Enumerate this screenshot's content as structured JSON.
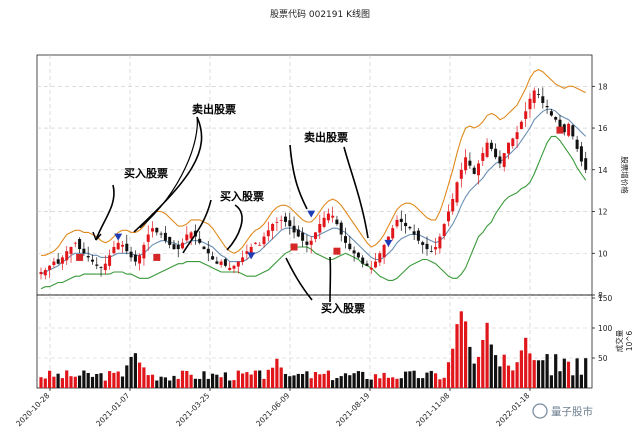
{
  "chart_data": {
    "type": "candlestick",
    "title": "股票代码 002191 K线图",
    "price_axis": {
      "label": "股票增价格",
      "ticks": [
        8,
        10,
        12,
        14,
        16,
        18
      ],
      "ylim": [
        8,
        19.5
      ]
    },
    "volume_axis": {
      "label": "成交量",
      "multiplier": "10^6",
      "ticks": [
        50,
        100,
        150
      ],
      "ylim": [
        0,
        155
      ]
    },
    "x_ticks": [
      "2020-10-28",
      "2021-01-07",
      "2021-03-25",
      "2021-06-09",
      "2021-08-19",
      "2021-11-08",
      "2022-01-18"
    ],
    "grid": true,
    "colors": {
      "up": "#e0161b",
      "down": "#111111",
      "upper_band": "#e08a1e",
      "middle_band": "#6a8fb4",
      "lower_band": "#3a9a3a",
      "buy_marker": "#d62728",
      "sell_marker": "#1f3bb3"
    },
    "close": [
      9.1,
      9.2,
      9.4,
      9.6,
      9.5,
      9.8,
      10.1,
      10.3,
      10.5,
      10.2,
      10.0,
      9.8,
      9.6,
      9.4,
      9.3,
      9.5,
      9.9,
      10.3,
      10.5,
      10.4,
      10.1,
      9.8,
      9.6,
      9.9,
      10.4,
      10.9,
      11.2,
      11.0,
      10.9,
      10.6,
      10.4,
      10.2,
      10.2,
      10.5,
      10.9,
      11.0,
      10.8,
      10.5,
      10.2,
      10.0,
      9.7,
      9.5,
      9.6,
      9.4,
      9.3,
      9.4,
      9.6,
      9.8,
      10.1,
      10.3,
      10.5,
      10.4,
      10.8,
      11.1,
      11.4,
      11.5,
      11.6,
      11.5,
      11.3,
      11.0,
      10.8,
      10.6,
      10.4,
      10.6,
      11.0,
      11.4,
      11.7,
      11.9,
      11.8,
      11.4,
      10.9,
      10.5,
      10.2,
      10.0,
      9.8,
      9.5,
      9.4,
      9.3,
      9.6,
      10.0,
      10.4,
      10.8,
      11.2,
      11.6,
      11.5,
      11.3,
      11.2,
      10.9,
      10.6,
      10.4,
      10.2,
      10.1,
      10.3,
      10.8,
      11.4,
      12.0,
      12.6,
      13.4,
      14.0,
      14.6,
      14.2,
      13.8,
      14.3,
      14.8,
      15.3,
      15.0,
      14.6,
      14.3,
      14.8,
      15.3,
      15.5,
      15.8,
      16.3,
      16.8,
      17.4,
      17.8,
      17.6,
      17.2,
      17.0,
      16.6,
      16.4,
      16.0,
      15.8,
      16.2,
      15.6,
      15.0,
      14.4,
      14.0
    ],
    "upper_band": [
      9.9,
      9.9,
      10.0,
      10.1,
      10.3,
      10.6,
      10.9,
      11.0,
      11.1,
      11.1,
      11.0,
      11.0,
      10.9,
      10.8,
      10.6,
      10.5,
      10.6,
      10.8,
      11.0,
      11.1,
      11.1,
      11.0,
      11.0,
      11.1,
      11.3,
      11.6,
      11.9,
      12.0,
      12.0,
      11.9,
      11.7,
      11.5,
      11.3,
      11.3,
      11.4,
      11.6,
      11.6,
      11.6,
      11.5,
      11.4,
      11.2,
      10.9,
      10.6,
      10.3,
      10.1,
      10.0,
      10.1,
      10.3,
      10.6,
      10.9,
      11.1,
      11.2,
      11.4,
      11.7,
      12.0,
      12.2,
      12.3,
      12.3,
      12.2,
      12.0,
      11.8,
      11.6,
      11.5,
      11.5,
      11.7,
      12.0,
      12.3,
      12.5,
      12.6,
      12.5,
      12.3,
      12.0,
      11.7,
      11.4,
      11.1,
      10.8,
      10.5,
      10.3,
      10.4,
      10.6,
      10.9,
      11.3,
      11.7,
      12.1,
      12.3,
      12.4,
      12.4,
      12.3,
      12.1,
      11.9,
      11.7,
      11.6,
      11.6,
      12.0,
      12.6,
      13.3,
      14.0,
      14.8,
      15.5,
      16.0,
      16.1,
      16.0,
      16.1,
      16.3,
      16.6,
      16.7,
      16.6,
      16.4,
      16.5,
      16.7,
      16.9,
      17.1,
      17.5,
      17.9,
      18.4,
      18.7,
      18.8,
      18.7,
      18.5,
      18.3,
      18.1,
      18.0,
      17.9,
      18.0,
      18.0,
      17.9,
      17.8,
      17.7
    ],
    "middle_band": [
      9.0,
      9.1,
      9.2,
      9.3,
      9.4,
      9.6,
      9.7,
      9.9,
      10.0,
      10.0,
      10.0,
      10.0,
      9.9,
      9.9,
      9.8,
      9.8,
      9.8,
      9.9,
      10.0,
      10.0,
      10.0,
      10.0,
      9.9,
      9.9,
      10.0,
      10.2,
      10.4,
      10.5,
      10.6,
      10.6,
      10.5,
      10.5,
      10.4,
      10.4,
      10.5,
      10.6,
      10.6,
      10.6,
      10.5,
      10.4,
      10.3,
      10.1,
      9.9,
      9.8,
      9.6,
      9.6,
      9.6,
      9.6,
      9.7,
      9.9,
      10.0,
      10.1,
      10.3,
      10.5,
      10.7,
      10.9,
      11.1,
      11.2,
      11.2,
      11.2,
      11.1,
      11.0,
      10.9,
      10.8,
      10.8,
      10.9,
      11.0,
      11.1,
      11.2,
      11.2,
      11.1,
      11.0,
      10.8,
      10.6,
      10.4,
      10.2,
      10.0,
      9.8,
      9.7,
      9.7,
      9.8,
      10.0,
      10.2,
      10.5,
      10.7,
      10.8,
      10.9,
      10.9,
      10.9,
      10.8,
      10.7,
      10.6,
      10.5,
      10.6,
      10.8,
      11.1,
      11.4,
      11.8,
      12.3,
      12.7,
      13.0,
      13.2,
      13.4,
      13.6,
      13.9,
      14.1,
      14.3,
      14.4,
      14.5,
      14.7,
      14.9,
      15.1,
      15.4,
      15.7,
      16.0,
      16.4,
      16.6,
      16.8,
      16.9,
      16.9,
      16.8,
      16.6,
      16.5,
      16.4,
      16.2,
      16.0,
      15.8,
      15.6
    ],
    "lower_band": [
      8.3,
      8.4,
      8.4,
      8.5,
      8.6,
      8.6,
      8.7,
      8.8,
      8.9,
      8.9,
      9.0,
      9.0,
      9.0,
      9.0,
      9.0,
      9.0,
      9.0,
      9.1,
      9.1,
      9.1,
      9.0,
      9.0,
      8.9,
      8.8,
      8.8,
      8.8,
      8.9,
      9.0,
      9.1,
      9.2,
      9.3,
      9.4,
      9.5,
      9.5,
      9.6,
      9.6,
      9.6,
      9.6,
      9.5,
      9.4,
      9.3,
      9.2,
      9.1,
      9.1,
      9.1,
      9.1,
      9.1,
      9.0,
      8.9,
      8.9,
      8.9,
      9.0,
      9.1,
      9.2,
      9.4,
      9.6,
      9.8,
      10.0,
      10.1,
      10.3,
      10.3,
      10.3,
      10.3,
      10.2,
      10.0,
      9.9,
      9.8,
      9.7,
      9.7,
      9.8,
      9.9,
      10.0,
      9.9,
      9.8,
      9.7,
      9.5,
      9.4,
      9.3,
      9.1,
      8.9,
      8.8,
      8.7,
      8.7,
      8.8,
      9.0,
      9.2,
      9.4,
      9.5,
      9.6,
      9.7,
      9.7,
      9.6,
      9.5,
      9.3,
      9.1,
      8.9,
      8.8,
      8.8,
      9.0,
      9.3,
      9.8,
      10.3,
      10.8,
      11.0,
      11.3,
      11.5,
      11.9,
      12.2,
      12.5,
      12.7,
      12.8,
      12.9,
      13.1,
      13.2,
      13.4,
      13.8,
      14.3,
      14.8,
      15.3,
      15.6,
      15.6,
      15.4,
      15.1,
      14.8,
      14.5,
      14.1,
      13.8,
      13.5
    ],
    "buy_signals": [
      {
        "index": 9,
        "price": 9.8
      },
      {
        "index": 27,
        "price": 9.8
      },
      {
        "index": 59,
        "price": 10.3
      },
      {
        "index": 69,
        "price": 10.1
      },
      {
        "index": 121,
        "price": 15.9
      }
    ],
    "sell_signals": [
      {
        "index": 18,
        "price": 10.8
      },
      {
        "index": 49,
        "price": 9.9
      },
      {
        "index": 63,
        "price": 11.9
      },
      {
        "index": 81,
        "price": 10.5
      }
    ],
    "annotations": [
      "卖出股票",
      "买入股票",
      "买入股票",
      "卖出股票",
      "买入股票"
    ],
    "volume_seed_peaks": [
      {
        "index": 22,
        "value": 70
      },
      {
        "index": 55,
        "value": 55
      },
      {
        "index": 98,
        "value": 145
      },
      {
        "index": 104,
        "value": 120
      },
      {
        "index": 113,
        "value": 90
      }
    ]
  },
  "watermark": "量子股市"
}
